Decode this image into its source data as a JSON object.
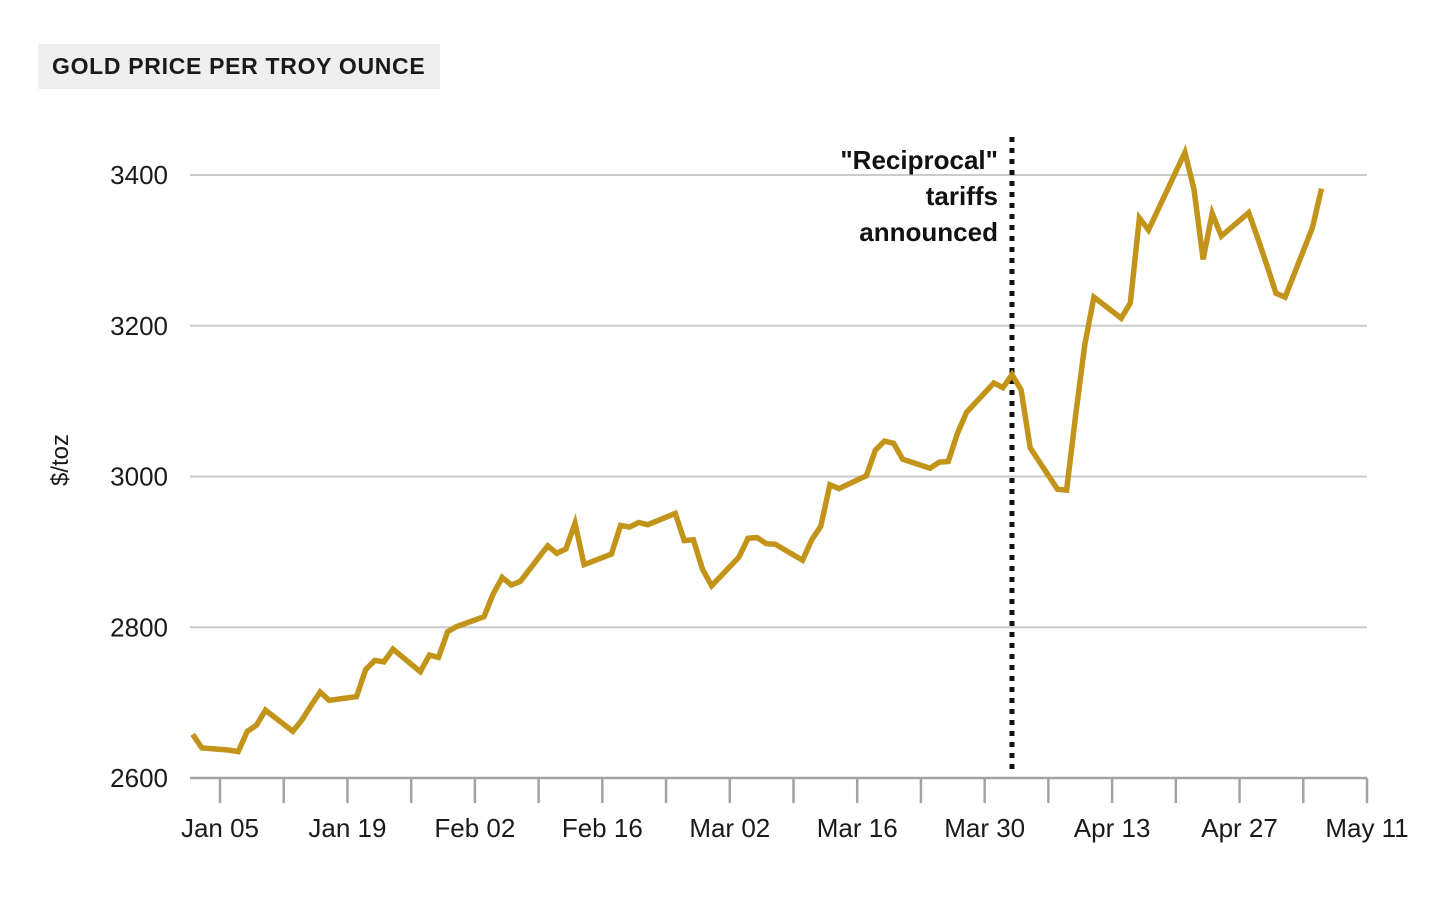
{
  "header": {
    "title": "GOLD PRICE PER TROY OUNCE"
  },
  "colors": {
    "line": "#C3941A",
    "grid": "#CBCBCB",
    "axis": "#A3A3A3",
    "text": "#1A1A1A",
    "annotation": "#111111",
    "title_bg": "#EFEFEF"
  },
  "chart_data": {
    "type": "line",
    "title": "GOLD PRICE PER TROY OUNCE",
    "xlabel": "",
    "ylabel": "$/toz",
    "ylim": [
      2600,
      3460
    ],
    "yticks": [
      2600,
      2800,
      3000,
      3200,
      3400
    ],
    "grid": true,
    "legend_position": "none",
    "x_range": [
      "2025-01-02",
      "2025-05-11"
    ],
    "x_first_tick": "2025-01-05",
    "x_tick_interval_days": 7,
    "x_label_every_n_ticks": 2,
    "x_tick_labels": [
      "Jan 05",
      "Jan 19",
      "Feb 02",
      "Feb 16",
      "Mar 02",
      "Mar 16",
      "Mar 30",
      "Apr 13",
      "Apr 27",
      "May 11"
    ],
    "annotation": {
      "lines": [
        "\"Reciprocal\"",
        "tariffs",
        "announced"
      ],
      "date": "2025-04-02",
      "style": "dotted-vertical-line"
    },
    "series": [
      {
        "name": "Gold price ($/toz)",
        "color": "#C3941A",
        "points": [
          [
            "2025-01-02",
            2658
          ],
          [
            "2025-01-03",
            2640
          ],
          [
            "2025-01-06",
            2637
          ],
          [
            "2025-01-07",
            2635
          ],
          [
            "2025-01-08",
            2662
          ],
          [
            "2025-01-09",
            2670
          ],
          [
            "2025-01-10",
            2690
          ],
          [
            "2025-01-13",
            2662
          ],
          [
            "2025-01-14",
            2677
          ],
          [
            "2025-01-15",
            2696
          ],
          [
            "2025-01-16",
            2714
          ],
          [
            "2025-01-17",
            2703
          ],
          [
            "2025-01-20",
            2708
          ],
          [
            "2025-01-21",
            2744
          ],
          [
            "2025-01-22",
            2756
          ],
          [
            "2025-01-23",
            2754
          ],
          [
            "2025-01-24",
            2771
          ],
          [
            "2025-01-27",
            2741
          ],
          [
            "2025-01-28",
            2763
          ],
          [
            "2025-01-29",
            2760
          ],
          [
            "2025-01-30",
            2794
          ],
          [
            "2025-01-31",
            2801
          ],
          [
            "2025-02-03",
            2814
          ],
          [
            "2025-02-04",
            2844
          ],
          [
            "2025-02-05",
            2866
          ],
          [
            "2025-02-06",
            2856
          ],
          [
            "2025-02-07",
            2861
          ],
          [
            "2025-02-10",
            2908
          ],
          [
            "2025-02-11",
            2898
          ],
          [
            "2025-02-12",
            2904
          ],
          [
            "2025-02-13",
            2938
          ],
          [
            "2025-02-14",
            2883
          ],
          [
            "2025-02-17",
            2897
          ],
          [
            "2025-02-18",
            2935
          ],
          [
            "2025-02-19",
            2933
          ],
          [
            "2025-02-20",
            2939
          ],
          [
            "2025-02-21",
            2936
          ],
          [
            "2025-02-24",
            2951
          ],
          [
            "2025-02-25",
            2915
          ],
          [
            "2025-02-26",
            2916
          ],
          [
            "2025-02-27",
            2877
          ],
          [
            "2025-02-28",
            2855
          ],
          [
            "2025-03-03",
            2893
          ],
          [
            "2025-03-04",
            2918
          ],
          [
            "2025-03-05",
            2919
          ],
          [
            "2025-03-06",
            2911
          ],
          [
            "2025-03-07",
            2910
          ],
          [
            "2025-03-10",
            2889
          ],
          [
            "2025-03-11",
            2916
          ],
          [
            "2025-03-12",
            2934
          ],
          [
            "2025-03-13",
            2989
          ],
          [
            "2025-03-14",
            2984
          ],
          [
            "2025-03-17",
            3001
          ],
          [
            "2025-03-18",
            3035
          ],
          [
            "2025-03-19",
            3047
          ],
          [
            "2025-03-20",
            3044
          ],
          [
            "2025-03-21",
            3023
          ],
          [
            "2025-03-24",
            3011
          ],
          [
            "2025-03-25",
            3019
          ],
          [
            "2025-03-26",
            3020
          ],
          [
            "2025-03-27",
            3057
          ],
          [
            "2025-03-28",
            3085
          ],
          [
            "2025-03-31",
            3124
          ],
          [
            "2025-04-01",
            3118
          ],
          [
            "2025-04-02",
            3135
          ],
          [
            "2025-04-03",
            3115
          ],
          [
            "2025-04-04",
            3038
          ],
          [
            "2025-04-07",
            2983
          ],
          [
            "2025-04-08",
            2982
          ],
          [
            "2025-04-09",
            3082
          ],
          [
            "2025-04-10",
            3175
          ],
          [
            "2025-04-11",
            3238
          ],
          [
            "2025-04-14",
            3210
          ],
          [
            "2025-04-15",
            3230
          ],
          [
            "2025-04-16",
            3343
          ],
          [
            "2025-04-17",
            3327
          ],
          [
            "2025-04-21",
            3430
          ],
          [
            "2025-04-22",
            3381
          ],
          [
            "2025-04-23",
            3288
          ],
          [
            "2025-04-24",
            3349
          ],
          [
            "2025-04-25",
            3319
          ],
          [
            "2025-04-28",
            3350
          ],
          [
            "2025-04-29",
            3316
          ],
          [
            "2025-04-30",
            3280
          ],
          [
            "2025-05-01",
            3243
          ],
          [
            "2025-05-02",
            3238
          ],
          [
            "2025-05-05",
            3330
          ],
          [
            "2025-05-06",
            3382
          ]
        ]
      }
    ]
  }
}
